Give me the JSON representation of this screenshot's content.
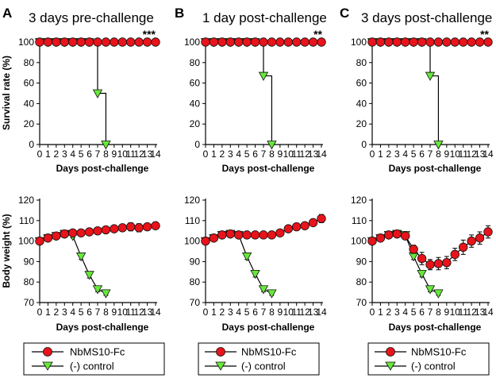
{
  "figure": {
    "y_axis_labels": {
      "survival": "Survival rate (%)",
      "weight": "Body weight (%)"
    },
    "legend": {
      "treated": "NbMS10-Fc",
      "control": "(-) control"
    },
    "colors": {
      "treated": "#e8131b",
      "control": "#66e83a",
      "marker_edge": "#111111",
      "axis": "#000000"
    }
  },
  "panels": [
    {
      "letter": "A",
      "title": "3 days pre-challenge",
      "significance": "***"
    },
    {
      "letter": "B",
      "title": "1 day post-challenge",
      "significance": "**"
    },
    {
      "letter": "C",
      "title": "3 days post-challenge",
      "significance": "**"
    }
  ],
  "chart_data": [
    {
      "type": "line",
      "panel": "A",
      "chart": "survival",
      "title": "3 days pre-challenge",
      "xlabel": "Days post-challenge",
      "ylabel": "Survival rate (%)",
      "xlim": [
        0,
        14
      ],
      "ylim": [
        0,
        100
      ],
      "xticks": [
        0,
        1,
        2,
        3,
        4,
        5,
        6,
        7,
        8,
        9,
        10,
        11,
        12,
        13,
        14
      ],
      "yticks": [
        0,
        20,
        40,
        60,
        80,
        100
      ],
      "step": true,
      "annotation": "***",
      "series": [
        {
          "name": "NbMS10-Fc",
          "x": [
            0,
            1,
            2,
            3,
            4,
            5,
            6,
            7,
            8,
            9,
            10,
            11,
            12,
            13,
            14
          ],
          "values": [
            100,
            100,
            100,
            100,
            100,
            100,
            100,
            100,
            100,
            100,
            100,
            100,
            100,
            100,
            100
          ]
        },
        {
          "name": "(-) control",
          "x": [
            0,
            1,
            2,
            3,
            4,
            5,
            6,
            7,
            8
          ],
          "values": [
            100,
            100,
            100,
            100,
            100,
            100,
            100,
            50,
            0
          ]
        }
      ]
    },
    {
      "type": "line",
      "panel": "B",
      "chart": "survival",
      "title": "1 day post-challenge",
      "xlabel": "Days post-challenge",
      "ylabel": "Survival rate (%)",
      "xlim": [
        0,
        14
      ],
      "ylim": [
        0,
        100
      ],
      "xticks": [
        0,
        1,
        2,
        3,
        4,
        5,
        6,
        7,
        8,
        9,
        10,
        11,
        12,
        13,
        14
      ],
      "yticks": [
        0,
        20,
        40,
        60,
        80,
        100
      ],
      "step": true,
      "annotation": "**",
      "series": [
        {
          "name": "NbMS10-Fc",
          "x": [
            0,
            1,
            2,
            3,
            4,
            5,
            6,
            7,
            8,
            9,
            10,
            11,
            12,
            13,
            14
          ],
          "values": [
            100,
            100,
            100,
            100,
            100,
            100,
            100,
            100,
            100,
            100,
            100,
            100,
            100,
            100,
            100
          ]
        },
        {
          "name": "(-) control",
          "x": [
            0,
            1,
            2,
            3,
            4,
            5,
            6,
            7,
            8
          ],
          "values": [
            100,
            100,
            100,
            100,
            100,
            100,
            100,
            67,
            0
          ]
        }
      ]
    },
    {
      "type": "line",
      "panel": "C",
      "chart": "survival",
      "title": "3 days post-challenge",
      "xlabel": "Days post-challenge",
      "ylabel": "Survival rate (%)",
      "xlim": [
        0,
        14
      ],
      "ylim": [
        0,
        100
      ],
      "xticks": [
        0,
        1,
        2,
        3,
        4,
        5,
        6,
        7,
        8,
        9,
        10,
        11,
        12,
        13,
        14
      ],
      "yticks": [
        0,
        20,
        40,
        60,
        80,
        100
      ],
      "step": true,
      "annotation": "**",
      "series": [
        {
          "name": "NbMS10-Fc",
          "x": [
            0,
            1,
            2,
            3,
            4,
            5,
            6,
            7,
            8,
            9,
            10,
            11,
            12,
            13,
            14
          ],
          "values": [
            100,
            100,
            100,
            100,
            100,
            100,
            100,
            100,
            100,
            100,
            100,
            100,
            100,
            100,
            100
          ]
        },
        {
          "name": "(-) control",
          "x": [
            0,
            1,
            2,
            3,
            4,
            5,
            6,
            7,
            8
          ],
          "values": [
            100,
            100,
            100,
            100,
            100,
            100,
            100,
            67,
            0
          ]
        }
      ]
    },
    {
      "type": "line",
      "panel": "A",
      "chart": "weight",
      "xlabel": "Days post-challenge",
      "ylabel": "Body weight (%)",
      "xlim": [
        0,
        14
      ],
      "ylim": [
        70,
        120
      ],
      "xticks": [
        0,
        1,
        2,
        3,
        4,
        5,
        6,
        7,
        8,
        9,
        10,
        11,
        12,
        13,
        14
      ],
      "yticks": [
        70,
        80,
        90,
        100,
        110,
        120
      ],
      "series": [
        {
          "name": "NbMS10-Fc",
          "x": [
            0,
            1,
            2,
            3,
            4,
            5,
            6,
            7,
            8,
            9,
            10,
            11,
            12,
            13,
            14
          ],
          "values": [
            100,
            101.5,
            102.5,
            103.5,
            104,
            104,
            104.5,
            105,
            105.5,
            106,
            106.5,
            107,
            106.5,
            107,
            107.5
          ],
          "errors": [
            0,
            0.5,
            0.5,
            0.8,
            0.8,
            1,
            1,
            1.2,
            1.2,
            1.5,
            1.5,
            2,
            2,
            1.5,
            1.5
          ]
        },
        {
          "name": "(-) control",
          "x": [
            0,
            1,
            2,
            3,
            4,
            5,
            6,
            7,
            8
          ],
          "values": [
            100,
            101.5,
            102.5,
            103.5,
            102.5,
            92.5,
            83.5,
            76.5,
            74.5
          ],
          "errors": [
            0,
            0.5,
            0.5,
            0.8,
            1,
            1.5,
            1.5,
            1.2,
            1
          ]
        }
      ]
    },
    {
      "type": "line",
      "panel": "B",
      "chart": "weight",
      "xlabel": "Days post-challenge",
      "ylabel": "Body weight (%)",
      "xlim": [
        0,
        14
      ],
      "ylim": [
        70,
        120
      ],
      "xticks": [
        0,
        1,
        2,
        3,
        4,
        5,
        6,
        7,
        8,
        9,
        10,
        11,
        12,
        13,
        14
      ],
      "yticks": [
        70,
        80,
        90,
        100,
        110,
        120
      ],
      "series": [
        {
          "name": "NbMS10-Fc",
          "x": [
            0,
            1,
            2,
            3,
            4,
            5,
            6,
            7,
            8,
            9,
            10,
            11,
            12,
            13,
            14
          ],
          "values": [
            100,
            101.5,
            103,
            103.5,
            103,
            103,
            103,
            103,
            103,
            104,
            106,
            107,
            107.5,
            109,
            111
          ],
          "errors": [
            0,
            0.5,
            0.5,
            0.8,
            1,
            1,
            1.2,
            1.2,
            1.5,
            1.5,
            1.5,
            1.5,
            1.5,
            1.5,
            2
          ]
        },
        {
          "name": "(-) control",
          "x": [
            0,
            1,
            2,
            3,
            4,
            5,
            6,
            7,
            8
          ],
          "values": [
            100,
            101.5,
            103,
            103.5,
            103,
            92.5,
            84,
            76.5,
            74.5
          ],
          "errors": [
            0,
            0.5,
            0.5,
            0.8,
            1,
            1.5,
            1.5,
            1.2,
            1
          ]
        }
      ]
    },
    {
      "type": "line",
      "panel": "C",
      "chart": "weight",
      "xlabel": "Days post-challenge",
      "ylabel": "Body weight (%)",
      "xlim": [
        0,
        14
      ],
      "ylim": [
        70,
        120
      ],
      "xticks": [
        0,
        1,
        2,
        3,
        4,
        5,
        6,
        7,
        8,
        9,
        10,
        11,
        12,
        13,
        14
      ],
      "yticks": [
        70,
        80,
        90,
        100,
        110,
        120
      ],
      "series": [
        {
          "name": "NbMS10-Fc",
          "x": [
            0,
            1,
            2,
            3,
            4,
            5,
            6,
            7,
            8,
            9,
            10,
            11,
            12,
            13,
            14
          ],
          "values": [
            100,
            101.5,
            103,
            103.5,
            102.5,
            96,
            91.5,
            88.5,
            89,
            89.5,
            93.5,
            97,
            100,
            101.5,
            104.5
          ],
          "errors": [
            0,
            0.5,
            0.5,
            0.8,
            1.5,
            2,
            3,
            2.5,
            3,
            3,
            3,
            3.5,
            3,
            3,
            3
          ]
        },
        {
          "name": "(-) control",
          "x": [
            0,
            1,
            2,
            3,
            4,
            5,
            6,
            7,
            8
          ],
          "values": [
            100,
            101.5,
            103,
            103.5,
            103,
            92.5,
            84,
            76.5,
            74.5
          ],
          "errors": [
            0,
            0.5,
            0.5,
            0.8,
            1,
            1.5,
            1.5,
            1.2,
            1
          ]
        }
      ]
    }
  ]
}
